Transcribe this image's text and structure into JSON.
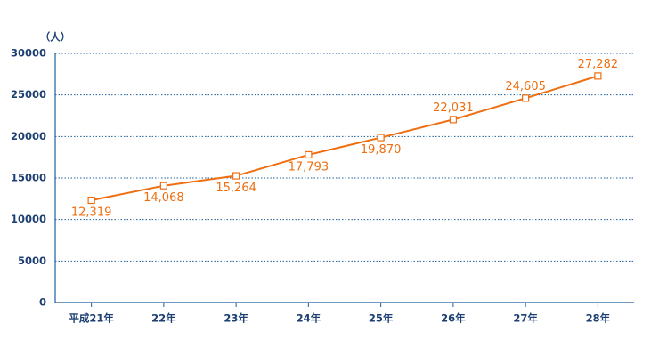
{
  "chart_data": {
    "type": "line",
    "y_label": "（人）",
    "categories": [
      "平成21年",
      "22年",
      "23年",
      "24年",
      "25年",
      "26年",
      "27年",
      "28年"
    ],
    "series": [
      {
        "color": "#ee6e10",
        "values": [
          12319,
          14068,
          15264,
          17793,
          19870,
          22031,
          24605,
          27282
        ],
        "value_labels": [
          "12,319",
          "14,068",
          "15,264",
          "17,793",
          "19,870",
          "22,031",
          "24,605",
          "27,282"
        ]
      }
    ],
    "ylim": [
      0,
      30000
    ],
    "yticks": [
      0,
      5000,
      10000,
      15000,
      20000,
      25000,
      30000
    ],
    "grid": true
  }
}
